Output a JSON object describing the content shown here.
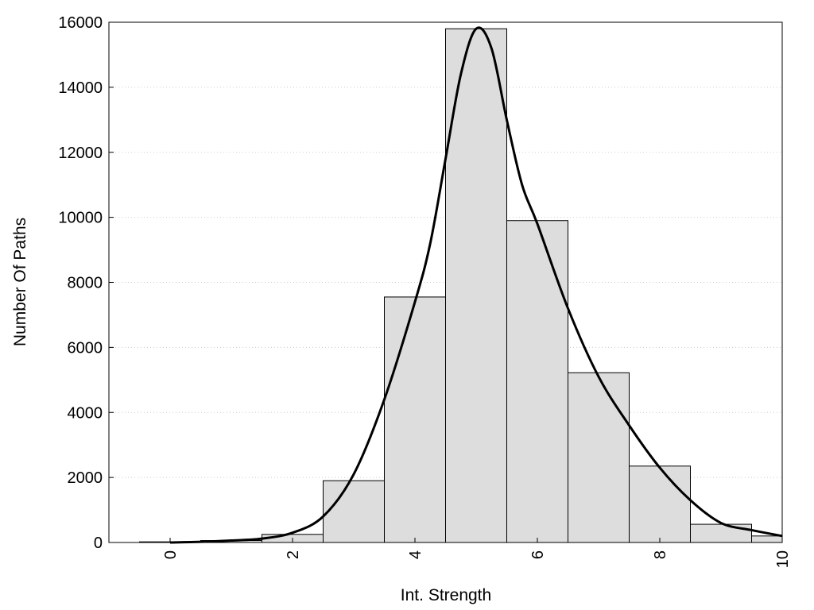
{
  "chart_data": {
    "type": "bar",
    "title": "",
    "xlabel": "Int. Strength",
    "ylabel": "Number Of Paths",
    "xlim": [
      -1,
      10
    ],
    "ylim": [
      0,
      16000
    ],
    "x_ticks": [
      0,
      2,
      4,
      6,
      8,
      10
    ],
    "y_ticks": [
      0,
      2000,
      4000,
      6000,
      8000,
      10000,
      12000,
      14000,
      16000
    ],
    "grid": "y-dotted",
    "legend": "none",
    "bin_width": 1,
    "bins": [
      {
        "x": 0,
        "value": 20
      },
      {
        "x": 1,
        "value": 60
      },
      {
        "x": 2,
        "value": 250
      },
      {
        "x": 3,
        "value": 1900
      },
      {
        "x": 4,
        "value": 7550
      },
      {
        "x": 5,
        "value": 15800
      },
      {
        "x": 6,
        "value": 9900
      },
      {
        "x": 7,
        "value": 5220
      },
      {
        "x": 8,
        "value": 2350
      },
      {
        "x": 9,
        "value": 560
      },
      {
        "x": 10,
        "value": 200
      }
    ],
    "curve": {
      "x": [
        0,
        0.5,
        1,
        1.5,
        2,
        2.5,
        3,
        3.5,
        4,
        4.25,
        4.5,
        4.75,
        5,
        5.25,
        5.5,
        5.75,
        6,
        6.5,
        7,
        7.5,
        8,
        8.5,
        9,
        9.5,
        10
      ],
      "y": [
        0,
        20,
        60,
        120,
        300,
        800,
        2100,
        4400,
        7400,
        9200,
        11800,
        14400,
        15800,
        15200,
        13000,
        11000,
        9800,
        7200,
        5100,
        3600,
        2300,
        1300,
        600,
        380,
        200
      ]
    },
    "colors": {
      "bar_fill": "#dddddd",
      "bar_stroke": "#000000",
      "curve": "#000000",
      "grid": "#cccccc"
    }
  }
}
